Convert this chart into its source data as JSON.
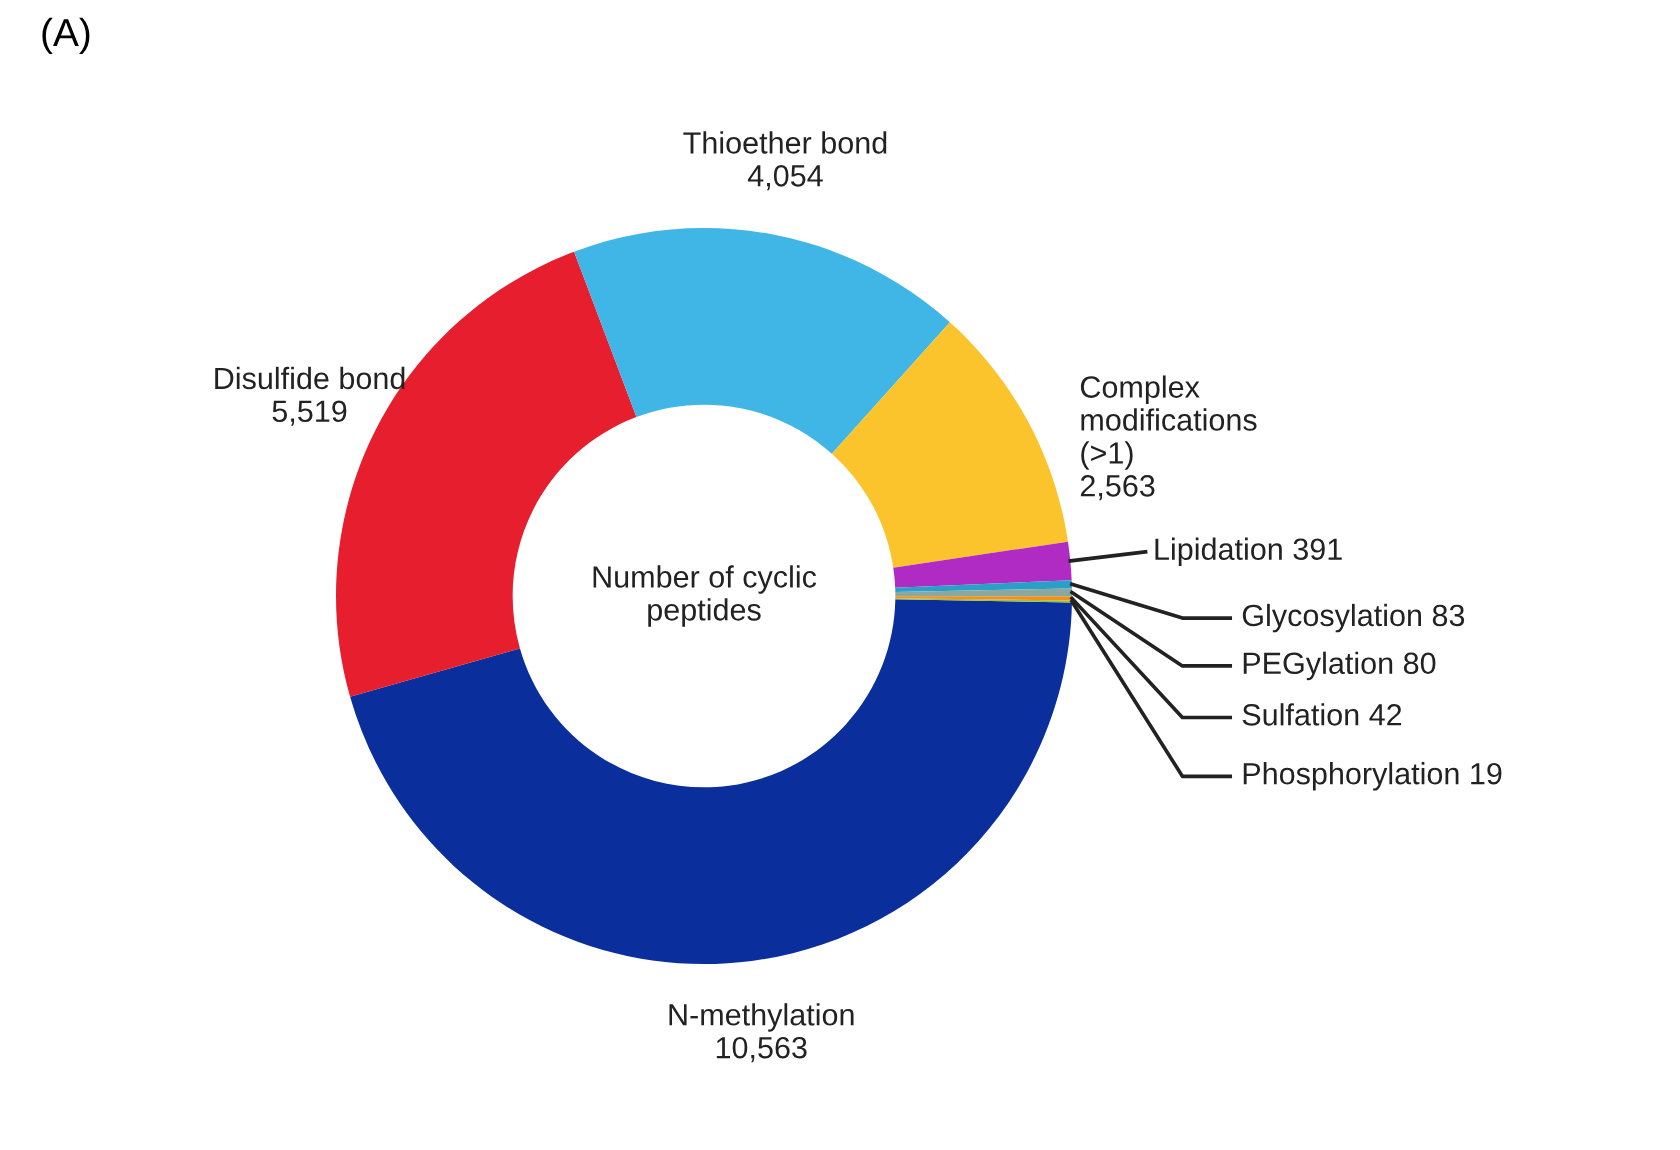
{
  "chart_data": {
    "type": "donut",
    "title": "(A)",
    "categories": [
      "N-methylation",
      "Disulfide bond",
      "Thioether bond",
      "Complex\nmodifications\n(>1)",
      "Lipidation",
      "Glycosylation",
      "PEGylation",
      "Sulfation",
      "Phosphorylation"
    ],
    "values": [
      10563,
      5519,
      4054,
      2563,
      391,
      83,
      80,
      42,
      19
    ],
    "colors": [
      "#0a2f9c",
      "#e61e2d",
      "#40b6e6",
      "#fcc42c",
      "#b02ac4",
      "#2aa0c8",
      "#8aa8a0",
      "#f0901e",
      "#a0c040"
    ],
    "value_labels": [
      "10,563",
      "5,519",
      "4,054",
      "2,563",
      "391",
      "83",
      "80",
      "42",
      "19"
    ],
    "annotations": [
      "Number of cyclic\npeptides"
    ]
  }
}
